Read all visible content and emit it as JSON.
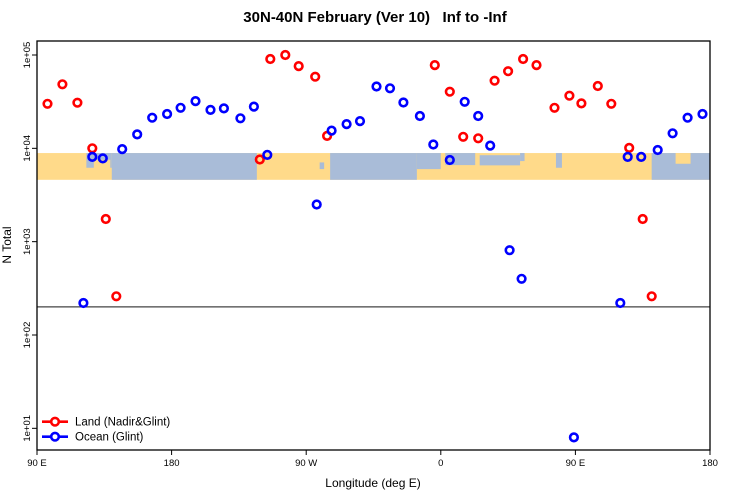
{
  "chart_data": {
    "type": "scatter",
    "title": "30N-40N February (Ver 10)   Inf to -Inf",
    "xlabel": "Longitude (deg E)",
    "ylabel": "N Total",
    "grid": false,
    "legend_position": "bottom-left",
    "point_style": "open-circle",
    "x_axis": {
      "range": [
        90,
        540
      ],
      "ticks": [
        90,
        180,
        270,
        360,
        450,
        540
      ],
      "labels": [
        "90 E",
        "180",
        "90 W",
        "0",
        "90 E",
        "180"
      ],
      "note": "longitude axis wraps eastward: 90E,180,90W,0,90E,180"
    },
    "y_axis": {
      "scale": "log",
      "range": [
        6,
        140000
      ],
      "ticks": [
        10,
        100,
        1000,
        10000,
        100000
      ],
      "labels": [
        "1e+01",
        "1e+02",
        "1e+03",
        "1e+04",
        "1e+05"
      ]
    },
    "ref_line": {
      "n": 200
    },
    "map_band": {
      "v_top": 8900,
      "v_bottom": 4600,
      "land_color": "#FFDA8A",
      "ocean_color": "#A9BCD8",
      "ocean_segments": [
        {
          "from": 123,
          "to": 140,
          "top": 0,
          "h": 0.55
        },
        {
          "from": 140,
          "to": 237,
          "top": 0,
          "h": 1
        },
        {
          "from": 279,
          "to": 282,
          "top": 0.35,
          "h": 0.25
        },
        {
          "from": 286,
          "to": 344,
          "top": 0,
          "h": 1
        },
        {
          "from": 344,
          "to": 360,
          "top": 0,
          "h": 0.6
        },
        {
          "from": 363,
          "to": 383,
          "top": 0,
          "h": 0.45
        },
        {
          "from": 386,
          "to": 413,
          "top": 0.08,
          "h": 0.38
        },
        {
          "from": 413,
          "to": 416,
          "top": 0,
          "h": 0.3
        },
        {
          "from": 437,
          "to": 441,
          "top": 0,
          "h": 0.55
        },
        {
          "from": 501,
          "to": 540,
          "top": 0,
          "h": 1
        }
      ],
      "land_patches": [
        {
          "from": 128,
          "to": 139,
          "top": 0.25,
          "h": 0.5
        },
        {
          "from": 517,
          "to": 527,
          "top": 0,
          "h": 0.4
        }
      ]
    },
    "series": [
      {
        "name": "Land (Nadir&Glint)",
        "color": "#FF0000",
        "points": [
          [
            97,
            30000
          ],
          [
            107,
            48500
          ],
          [
            117,
            30800
          ],
          [
            127,
            10000
          ],
          [
            136,
            1750
          ],
          [
            143,
            260
          ],
          [
            239,
            7600
          ],
          [
            246,
            90500
          ],
          [
            256,
            100000
          ],
          [
            265,
            76000
          ],
          [
            276,
            58500
          ],
          [
            284,
            13600
          ],
          [
            356,
            78000
          ],
          [
            366,
            40400
          ],
          [
            375,
            13300
          ],
          [
            385,
            12800
          ],
          [
            396,
            53000
          ],
          [
            405,
            67000
          ],
          [
            415,
            90500
          ],
          [
            424,
            78000
          ],
          [
            436,
            27200
          ],
          [
            446,
            36600
          ],
          [
            454,
            30300
          ],
          [
            465,
            46500
          ],
          [
            474,
            30000
          ],
          [
            486,
            10100
          ],
          [
            495,
            1750
          ],
          [
            501,
            260
          ]
        ]
      },
      {
        "name": "Ocean (Glint)",
        "color": "#0000FF",
        "points": [
          [
            121,
            220
          ],
          [
            127,
            8100
          ],
          [
            134,
            7800
          ],
          [
            147,
            9800
          ],
          [
            157,
            14100
          ],
          [
            167,
            21300
          ],
          [
            177,
            23300
          ],
          [
            186,
            27200
          ],
          [
            196,
            32100
          ],
          [
            206,
            25800
          ],
          [
            215,
            26800
          ],
          [
            226,
            21000
          ],
          [
            235,
            28000
          ],
          [
            244,
            8500
          ],
          [
            277,
            2500
          ],
          [
            287,
            15500
          ],
          [
            297,
            18200
          ],
          [
            306,
            19600
          ],
          [
            317,
            46000
          ],
          [
            326,
            44000
          ],
          [
            335,
            31000
          ],
          [
            346,
            22200
          ],
          [
            355,
            11000
          ],
          [
            366,
            7500
          ],
          [
            376,
            31500
          ],
          [
            385,
            22200
          ],
          [
            393,
            10700
          ],
          [
            406,
            810
          ],
          [
            414,
            400
          ],
          [
            449,
            8
          ],
          [
            480,
            220
          ],
          [
            485,
            8100
          ],
          [
            494,
            8100
          ],
          [
            505,
            9600
          ],
          [
            515,
            14500
          ],
          [
            525,
            21300
          ],
          [
            535,
            23300
          ]
        ]
      }
    ]
  }
}
